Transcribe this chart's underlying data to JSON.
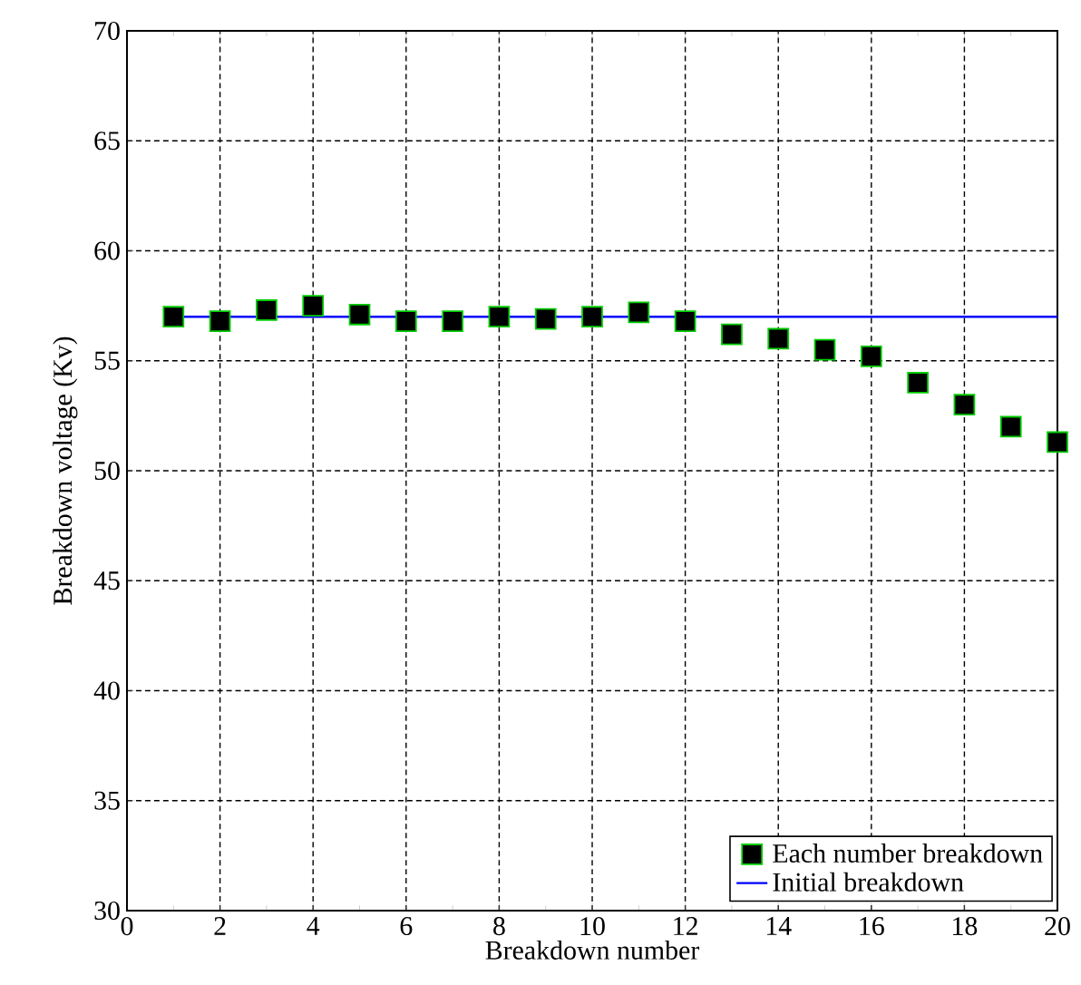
{
  "chart_data": {
    "type": "scatter",
    "xlabel": "Breakdown number",
    "ylabel": "Breakdown voltage (Kv)",
    "xlim": [
      0,
      20
    ],
    "xticks": [
      0,
      2,
      4,
      6,
      8,
      10,
      12,
      14,
      16,
      18,
      20
    ],
    "ylim": [
      30,
      70
    ],
    "yticks": [
      30,
      35,
      40,
      45,
      50,
      55,
      60,
      65,
      70
    ],
    "grid": true,
    "legend": "bottom right",
    "series": [
      {
        "name": "Each number breakdown",
        "marker": "square",
        "color": "#000000",
        "x": [
          1,
          2,
          3,
          4,
          5,
          6,
          7,
          8,
          9,
          10,
          11,
          12,
          13,
          14,
          15,
          16,
          17,
          18,
          19,
          20
        ],
        "values": [
          57.0,
          56.8,
          57.3,
          57.5,
          57.1,
          56.8,
          56.8,
          57.0,
          56.9,
          57.0,
          57.2,
          56.8,
          56.2,
          56.0,
          55.5,
          55.2,
          54.0,
          53.0,
          52.0,
          51.3
        ]
      },
      {
        "name": "Initial breakdown",
        "type": "line",
        "marker": "none",
        "color": "#0000ff",
        "x": [
          1,
          20
        ],
        "values": [
          57.0,
          57.0
        ]
      }
    ]
  }
}
